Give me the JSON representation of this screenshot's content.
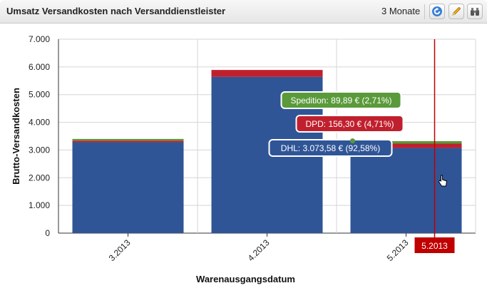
{
  "header": {
    "title": "Umsatz Versandkosten nach Versanddienstleister",
    "range_label": "3 Monate",
    "icons": [
      "refresh-icon",
      "pencil-icon",
      "binoculars-icon"
    ]
  },
  "chart_data": {
    "type": "bar",
    "stacked": true,
    "title": "",
    "xlabel": "Warenausgangsdatum",
    "ylabel": "Brutto-Versandkosten",
    "ylim": [
      0,
      7000
    ],
    "yticks": [
      "0",
      "1.000",
      "2.000",
      "3.000",
      "4.000",
      "5.000",
      "6.000",
      "7.000"
    ],
    "yticks_values": [
      0,
      1000,
      2000,
      3000,
      4000,
      5000,
      6000,
      7000
    ],
    "categories": [
      "3.2013",
      "4.2013",
      "5.2013"
    ],
    "series": [
      {
        "name": "DHL",
        "color": "#2f5597",
        "values": [
          3280,
          5640,
          3073.58
        ]
      },
      {
        "name": "DPD",
        "color": "#c0202e",
        "values": [
          60,
          250,
          156.3
        ]
      },
      {
        "name": "Spedition",
        "color": "#5a9a3a",
        "values": [
          60,
          0,
          89.89
        ]
      }
    ],
    "grid": true,
    "crosshair": {
      "category": "5.2013",
      "label": "5.2013",
      "color": "#c00000"
    },
    "tooltips": [
      {
        "series": "Spedition",
        "text": "Spedition: 89,89 € (2,71%)",
        "color": "#5a9a3a"
      },
      {
        "series": "DPD",
        "text": "DPD: 156,30 € (4,71%)",
        "color": "#c0202e"
      },
      {
        "series": "DHL",
        "text": "DHL: 3.073,58 € (92,58%)",
        "color": "#2f5597"
      }
    ]
  }
}
